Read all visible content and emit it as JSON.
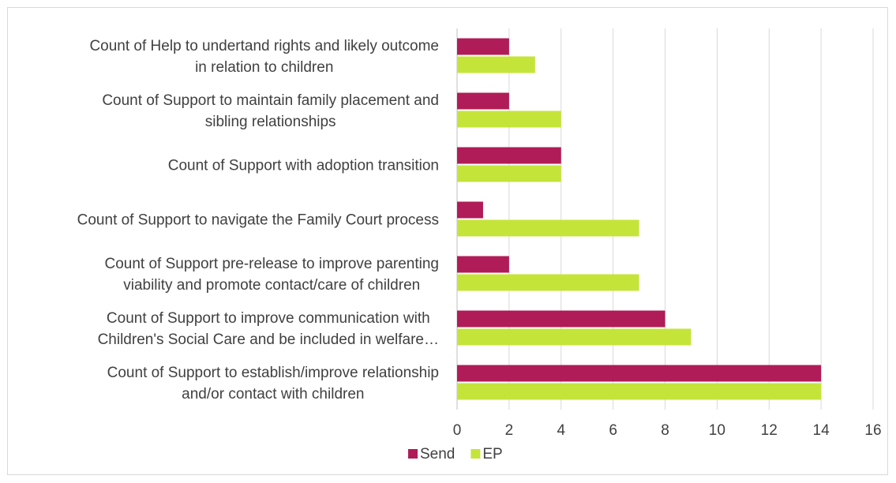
{
  "chart_data": {
    "type": "bar",
    "orientation": "horizontal",
    "title": "",
    "xlabel": "",
    "ylabel": "",
    "categories": [
      [
        "Count of Help to undertand rights and likely outcome",
        "in relation to children"
      ],
      [
        "Count of Support to maintain family placement and",
        "sibling relationships"
      ],
      [
        "Count of Support with adoption transition"
      ],
      [
        "Count of Support to navigate the Family Court process"
      ],
      [
        "Count of Support pre-release to improve parenting",
        "viability and promote contact/care of children"
      ],
      [
        "Count of Support to improve communication with",
        "Children's Social Care and be included in welfare…"
      ],
      [
        "Count of Support to establish/improve relationship",
        "and/or contact with children"
      ]
    ],
    "series": [
      {
        "name": "Send",
        "color": "#b01c57",
        "values": [
          2,
          2,
          4,
          1,
          2,
          8,
          14
        ]
      },
      {
        "name": "EP",
        "color": "#c5e43a",
        "values": [
          3,
          4,
          4,
          7,
          7,
          9,
          14
        ]
      }
    ],
    "xlim": [
      0,
      16
    ],
    "ticks": [
      0,
      2,
      4,
      6,
      8,
      10,
      12,
      14,
      16
    ],
    "grid": true,
    "legend": "bottom"
  }
}
